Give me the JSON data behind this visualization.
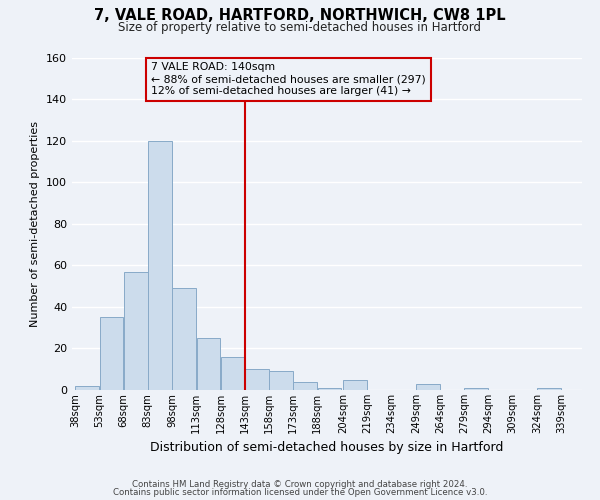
{
  "title": "7, VALE ROAD, HARTFORD, NORTHWICH, CW8 1PL",
  "subtitle": "Size of property relative to semi-detached houses in Hartford",
  "xlabel": "Distribution of semi-detached houses by size in Hartford",
  "ylabel": "Number of semi-detached properties",
  "bin_edges": [
    38,
    53,
    68,
    83,
    98,
    113,
    128,
    143,
    158,
    173,
    188,
    204,
    219,
    234,
    249,
    264,
    279,
    294,
    309,
    324,
    339
  ],
  "bar_heights": [
    2,
    35,
    57,
    120,
    49,
    25,
    16,
    10,
    9,
    4,
    1,
    5,
    0,
    0,
    3,
    0,
    1,
    0,
    0,
    1
  ],
  "bar_color": "#ccdcec",
  "bar_edgecolor": "#88aac8",
  "vline_x": 143,
  "vline_color": "#cc0000",
  "annotation_title": "7 VALE ROAD: 140sqm",
  "annotation_line1": "← 88% of semi-detached houses are smaller (297)",
  "annotation_line2": "12% of semi-detached houses are larger (41) →",
  "annotation_box_edgecolor": "#cc0000",
  "ylim": [
    0,
    160
  ],
  "yticks": [
    0,
    20,
    40,
    60,
    80,
    100,
    120,
    140,
    160
  ],
  "tick_labels": [
    "38sqm",
    "53sqm",
    "68sqm",
    "83sqm",
    "98sqm",
    "113sqm",
    "128sqm",
    "143sqm",
    "158sqm",
    "173sqm",
    "188sqm",
    "204sqm",
    "219sqm",
    "234sqm",
    "249sqm",
    "264sqm",
    "279sqm",
    "294sqm",
    "309sqm",
    "324sqm",
    "339sqm"
  ],
  "bg_color": "#eef2f8",
  "grid_color": "#ffffff",
  "footer1": "Contains HM Land Registry data © Crown copyright and database right 2024.",
  "footer2": "Contains public sector information licensed under the Open Government Licence v3.0."
}
